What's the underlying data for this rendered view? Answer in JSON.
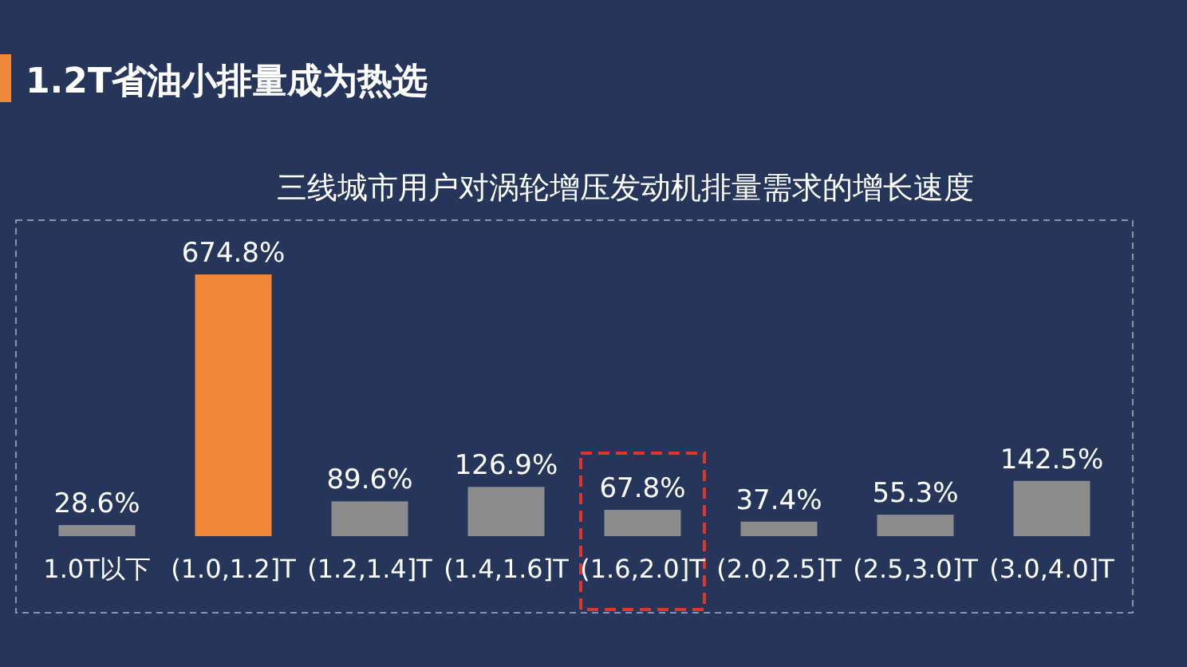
{
  "chart_data": {
    "type": "bar",
    "title": "三线城市用户对涡轮增压发动机排量需求的增长速度",
    "subtitle": "1.2T省油小排量成为热选",
    "categories": [
      "1.0T以下",
      "(1.0,1.2]T",
      "(1.2,1.4]T",
      "(1.4,1.6]T",
      "(1.6,2.0]T",
      "(2.0,2.5]T",
      "(2.5,3.0]T",
      "(3.0,4.0]T"
    ],
    "values": [
      28.6,
      674.8,
      89.6,
      126.9,
      67.8,
      37.4,
      55.3,
      142.5
    ],
    "colors": [
      "#8c8c8c",
      "#f0883a",
      "#8c8c8c",
      "#8c8c8c",
      "#8c8c8c",
      "#8c8c8c",
      "#8c8c8c",
      "#8c8c8c"
    ],
    "value_labels": [
      "28.6%",
      "674.8%",
      "89.6%",
      "126.9%",
      "67.8%",
      "37.4%",
      "55.3%",
      "142.5%"
    ],
    "data_labels": false
  }
}
